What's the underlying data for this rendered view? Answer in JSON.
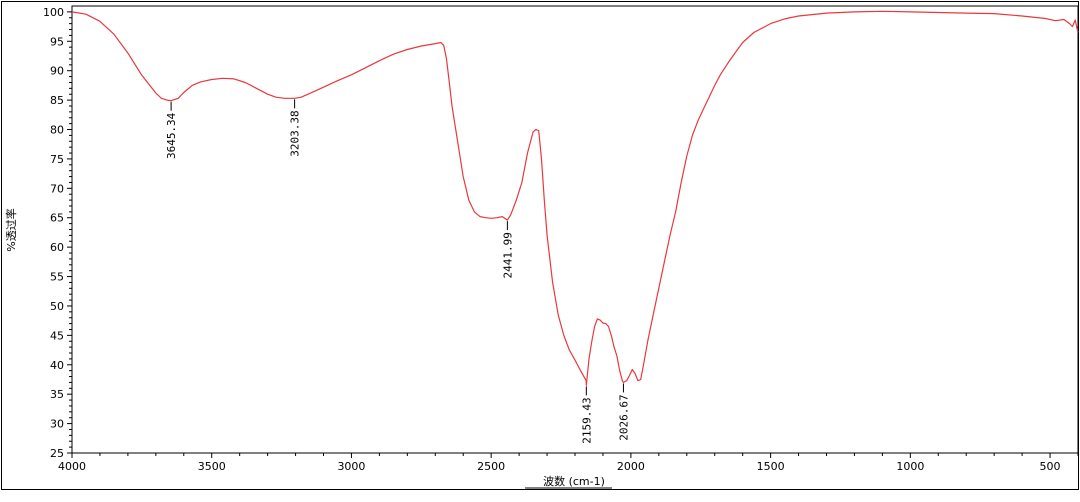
{
  "chart_data": {
    "type": "line",
    "title": "",
    "xlabel": "波数 (cm-1)",
    "ylabel": "%透过率",
    "xlim": [
      4000,
      400
    ],
    "ylim": [
      25,
      101
    ],
    "x_reversed": true,
    "grid": false,
    "x_ticks": [
      4000,
      3500,
      3000,
      2500,
      2000,
      1500,
      1000,
      500
    ],
    "y_ticks": [
      25,
      30,
      35,
      40,
      45,
      50,
      55,
      60,
      65,
      70,
      75,
      80,
      85,
      90,
      95,
      100
    ],
    "colors": {
      "series": "#e8383d",
      "axis": "#000000",
      "background": "#ffffff"
    },
    "series": [
      {
        "x": [
          4000,
          3950,
          3900,
          3850,
          3800,
          3750,
          3700,
          3680,
          3660,
          3645.34,
          3620,
          3600,
          3570,
          3540,
          3500,
          3460,
          3420,
          3380,
          3340,
          3300,
          3270,
          3240,
          3220,
          3203.38,
          3180,
          3150,
          3100,
          3050,
          3000,
          2950,
          2900,
          2850,
          2800,
          2750,
          2700,
          2680,
          2670,
          2660,
          2650,
          2640,
          2620,
          2600,
          2580,
          2560,
          2540,
          2520,
          2500,
          2480,
          2460,
          2441.99,
          2430,
          2410,
          2390,
          2370,
          2350,
          2340,
          2330,
          2320,
          2310,
          2300,
          2280,
          2260,
          2240,
          2220,
          2200,
          2180,
          2160,
          2159.43,
          2150,
          2140,
          2130,
          2120,
          2110,
          2100,
          2090,
          2080,
          2070,
          2060,
          2050,
          2040,
          2030,
          2026.67,
          2015,
          2005,
          1995,
          1985,
          1975,
          1965,
          1955,
          1940,
          1920,
          1900,
          1880,
          1860,
          1840,
          1820,
          1800,
          1780,
          1760,
          1740,
          1720,
          1700,
          1680,
          1650,
          1620,
          1600,
          1560,
          1520,
          1500,
          1450,
          1400,
          1300,
          1200,
          1100,
          1000,
          900,
          800,
          700,
          600,
          520,
          480,
          450,
          430,
          420,
          410,
          400
        ],
        "values": [
          100,
          99.6,
          98.4,
          96.2,
          93,
          89.2,
          86.2,
          85.3,
          85,
          84.9,
          85.3,
          86.3,
          87.5,
          88.1,
          88.5,
          88.7,
          88.6,
          88,
          87,
          86,
          85.5,
          85.3,
          85.3,
          85.3,
          85.5,
          86.1,
          87.2,
          88.3,
          89.3,
          90.5,
          91.7,
          92.8,
          93.6,
          94.2,
          94.6,
          94.8,
          94.3,
          92,
          88,
          84,
          78,
          72,
          68,
          66,
          65.2,
          65,
          64.9,
          65,
          65.2,
          64.6,
          65.5,
          68,
          71,
          76,
          79.6,
          80,
          79.8,
          75,
          68,
          62,
          54,
          48.5,
          45,
          42.5,
          40.8,
          39,
          37.3,
          36.5,
          41,
          44,
          46.5,
          47.8,
          47.6,
          47.1,
          47,
          46.5,
          45,
          43,
          41.5,
          39,
          37.2,
          37,
          37.3,
          38.2,
          39.2,
          38.5,
          37.3,
          37.5,
          40,
          44,
          48.5,
          53,
          57.5,
          62,
          66,
          71,
          75.5,
          79,
          81.5,
          83.5,
          85.5,
          87.5,
          89.3,
          91.5,
          93.5,
          94.8,
          96.5,
          97.5,
          98,
          98.8,
          99.3,
          99.8,
          100,
          100.1,
          100,
          99.9,
          99.8,
          99.7,
          99.3,
          98.9,
          98.5,
          98.7,
          98,
          97.5,
          98.6,
          96.5
        ]
      }
    ],
    "annotations": [
      {
        "x": 3645.34,
        "y": 84.9,
        "label": "3645.34"
      },
      {
        "x": 3203.38,
        "y": 85.3,
        "label": "3203.38"
      },
      {
        "x": 2441.99,
        "y": 64.6,
        "label": "2441.99"
      },
      {
        "x": 2159.43,
        "y": 36.5,
        "label": "2159.43"
      },
      {
        "x": 2026.67,
        "y": 37,
        "label": "2026.67"
      }
    ]
  }
}
